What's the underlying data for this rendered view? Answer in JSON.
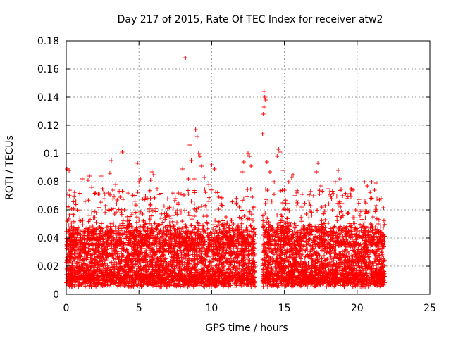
{
  "chart_data": {
    "type": "scatter",
    "title": "Day 217 of 2015, Rate Of TEC Index for receiver atw2",
    "xlabel": "GPS time / hours",
    "ylabel": "ROTI / TECUs",
    "xlim": [
      0,
      25
    ],
    "ylim": [
      0,
      0.18
    ],
    "x_ticks": [
      0,
      5,
      10,
      15,
      20,
      25
    ],
    "y_ticks": [
      0,
      0.02,
      0.04,
      0.06,
      0.08,
      0.1,
      0.12,
      0.14,
      0.16,
      0.18
    ],
    "x_tick_labels": [
      "0",
      "5",
      "10",
      "15",
      "20",
      "25"
    ],
    "y_tick_labels": [
      "0",
      "0.02",
      "0.04",
      "0.06",
      "0.08",
      "0.1",
      "0.12",
      "0.14",
      "0.16",
      "0.18"
    ],
    "grid": true,
    "marker": "+",
    "marker_color": "#ff0000",
    "data_gap_hours": [
      13.0,
      13.5
    ],
    "series": [
      {
        "points": [
          [
            0.05,
            0.089
          ],
          [
            0.1,
            0.071
          ],
          [
            0.12,
            0.062
          ],
          [
            0.2,
            0.088
          ],
          [
            0.15,
            0.045
          ],
          [
            0.3,
            0.038
          ],
          [
            0.5,
            0.035
          ],
          [
            0.8,
            0.033
          ],
          [
            1.0,
            0.052
          ],
          [
            1.1,
            0.082
          ],
          [
            1.3,
            0.066
          ],
          [
            1.5,
            0.081
          ],
          [
            1.6,
            0.084
          ],
          [
            1.75,
            0.076
          ],
          [
            2.0,
            0.072
          ],
          [
            2.2,
            0.071
          ],
          [
            2.4,
            0.084
          ],
          [
            2.5,
            0.075
          ],
          [
            2.7,
            0.063
          ],
          [
            2.9,
            0.072
          ],
          [
            3.0,
            0.086
          ],
          [
            3.1,
            0.095
          ],
          [
            3.2,
            0.074
          ],
          [
            3.4,
            0.078
          ],
          [
            3.5,
            0.067
          ],
          [
            3.7,
            0.069
          ],
          [
            3.85,
            0.101
          ],
          [
            4.0,
            0.06
          ],
          [
            4.2,
            0.052
          ],
          [
            4.5,
            0.048
          ],
          [
            4.8,
            0.046
          ],
          [
            4.9,
            0.093
          ],
          [
            5.0,
            0.08
          ],
          [
            5.1,
            0.082
          ],
          [
            5.3,
            0.052
          ],
          [
            5.6,
            0.047
          ],
          [
            5.8,
            0.081
          ],
          [
            5.9,
            0.087
          ],
          [
            6.0,
            0.085
          ],
          [
            6.2,
            0.046
          ],
          [
            6.5,
            0.054
          ],
          [
            6.8,
            0.048
          ],
          [
            7.0,
            0.049
          ],
          [
            7.2,
            0.054
          ],
          [
            7.5,
            0.068
          ],
          [
            7.7,
            0.065
          ],
          [
            7.9,
            0.071
          ],
          [
            8.0,
            0.089
          ],
          [
            8.2,
            0.168
          ],
          [
            8.4,
            0.082
          ],
          [
            8.5,
            0.106
          ],
          [
            8.6,
            0.095
          ],
          [
            8.8,
            0.082
          ],
          [
            8.9,
            0.117
          ],
          [
            9.0,
            0.112
          ],
          [
            9.1,
            0.1
          ],
          [
            9.2,
            0.098
          ],
          [
            9.3,
            0.091
          ],
          [
            9.5,
            0.083
          ],
          [
            9.8,
            0.078
          ],
          [
            10.0,
            0.092
          ],
          [
            10.2,
            0.089
          ],
          [
            10.5,
            0.069
          ],
          [
            11.0,
            0.055
          ],
          [
            11.5,
            0.05
          ],
          [
            11.9,
            0.062
          ],
          [
            12.1,
            0.087
          ],
          [
            12.2,
            0.094
          ],
          [
            12.5,
            0.1
          ],
          [
            12.6,
            0.098
          ],
          [
            12.7,
            0.091
          ],
          [
            12.8,
            0.069
          ],
          [
            12.9,
            0.062
          ],
          [
            13.6,
            0.144
          ],
          [
            13.65,
            0.14
          ],
          [
            13.7,
            0.138
          ],
          [
            13.6,
            0.133
          ],
          [
            13.55,
            0.128
          ],
          [
            13.5,
            0.114
          ],
          [
            13.8,
            0.094
          ],
          [
            14.0,
            0.087
          ],
          [
            14.3,
            0.08
          ],
          [
            14.5,
            0.098
          ],
          [
            14.6,
            0.103
          ],
          [
            14.7,
            0.101
          ],
          [
            14.9,
            0.088
          ],
          [
            15.0,
            0.074
          ],
          [
            15.3,
            0.08
          ],
          [
            15.5,
            0.083
          ],
          [
            15.6,
            0.085
          ],
          [
            15.9,
            0.065
          ],
          [
            16.2,
            0.062
          ],
          [
            16.5,
            0.057
          ],
          [
            16.8,
            0.063
          ],
          [
            17.0,
            0.07
          ],
          [
            17.2,
            0.087
          ],
          [
            17.3,
            0.093
          ],
          [
            17.5,
            0.077
          ],
          [
            17.8,
            0.063
          ],
          [
            18.0,
            0.075
          ],
          [
            18.3,
            0.06
          ],
          [
            18.5,
            0.08
          ],
          [
            18.7,
            0.088
          ],
          [
            18.8,
            0.082
          ],
          [
            19.0,
            0.07
          ],
          [
            19.3,
            0.068
          ],
          [
            19.6,
            0.075
          ],
          [
            19.9,
            0.06
          ],
          [
            20.2,
            0.056
          ],
          [
            20.5,
            0.08
          ],
          [
            20.7,
            0.077
          ],
          [
            21.0,
            0.08
          ],
          [
            21.2,
            0.074
          ],
          [
            21.3,
            0.079
          ],
          [
            21.5,
            0.045
          ],
          [
            21.7,
            0.038
          ]
        ]
      }
    ],
    "dense_band": {
      "description_segments": [
        [
          0.0,
          13.0,
          0.005,
          0.045
        ],
        [
          13.5,
          21.9,
          0.005,
          0.045
        ]
      ]
    }
  }
}
